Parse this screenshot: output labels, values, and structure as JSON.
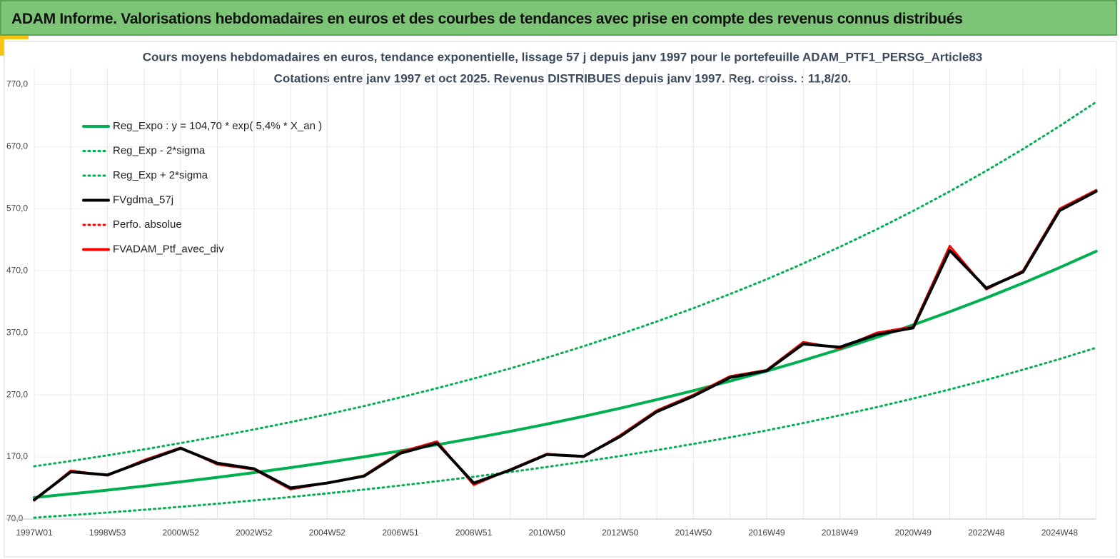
{
  "header": {
    "title": "ADAM Informe. Valorisations hebdomadaires en euros et des courbes de tendances avec prise en compte des revenus connus distribués"
  },
  "chart_data": {
    "type": "line",
    "title": "Cours moyens hebdomadaires  en euros, tendance exponentielle, lissage 57 j depuis janv 1997 pour le portefeuille ADAM_PTF1_PERSG_Article83",
    "subtitle": "Cotations  entre janv 1997 et oct 2025. Revenus DISTRIBUES depuis janv 1997. Reg. croiss. : 11,8/20.",
    "categories": [
      "1997W01",
      null,
      "1998W53",
      null,
      "2000W52",
      null,
      "2002W52",
      null,
      "2004W52",
      null,
      "2006W51",
      null,
      "2008W51",
      null,
      "2010W50",
      null,
      "2012W50",
      null,
      "2014W50",
      null,
      "2016W49",
      null,
      "2018W49",
      null,
      "2020W49",
      null,
      "2022W48",
      null,
      "2024W48",
      null
    ],
    "ylim": [
      70,
      797
    ],
    "yticks": [
      {
        "value": 70,
        "label": "70,0"
      },
      {
        "value": 170,
        "label": "170,0"
      },
      {
        "value": 270,
        "label": "270,0"
      },
      {
        "value": 370,
        "label": "370,0"
      },
      {
        "value": 470,
        "label": "470,0"
      },
      {
        "value": 570,
        "label": "570,0"
      },
      {
        "value": 670,
        "label": "670,0"
      },
      {
        "value": 770,
        "label": "770,0"
      }
    ],
    "grid": true,
    "legend": "upper-left",
    "series": [
      {
        "name": "Reg_Expo : y = 104,70 * exp( 5,4% *  X_an )",
        "color": "#00b050",
        "style": "solid",
        "values": [
          104.7,
          110.5,
          116.6,
          123.1,
          130.0,
          137.2,
          144.8,
          152.8,
          161.3,
          170.2,
          179.7,
          189.7,
          200.2,
          211.3,
          223.0,
          235.4,
          248.5,
          262.3,
          276.8,
          292.2,
          308.3,
          325.5,
          343.6,
          362.6,
          382.7,
          404.0,
          426.4,
          450.1,
          475.1,
          501.4
        ]
      },
      {
        "name": "Reg_Exp - 2*sigma",
        "color": "#00b050",
        "style": "dotted",
        "values": [
          72.2,
          76.2,
          80.5,
          84.9,
          89.7,
          94.7,
          99.9,
          105.4,
          111.3,
          117.4,
          124.0,
          130.9,
          138.1,
          145.8,
          153.9,
          162.4,
          171.5,
          181.0,
          191.0,
          201.6,
          212.7,
          224.6,
          237.1,
          250.2,
          264.1,
          278.8,
          294.2,
          310.6,
          327.8,
          346.0
        ]
      },
      {
        "name": "Reg_Exp + 2*sigma",
        "color": "#00b050",
        "style": "dotted",
        "values": [
          155.0,
          163.5,
          172.6,
          182.2,
          192.4,
          203.1,
          214.3,
          226.1,
          238.7,
          251.9,
          266.0,
          280.8,
          296.3,
          312.7,
          330.0,
          348.4,
          367.8,
          388.2,
          409.7,
          432.5,
          456.3,
          481.7,
          508.5,
          536.6,
          566.4,
          597.9,
          631.1,
          666.1,
          703.1,
          742.1
        ]
      },
      {
        "name": "FVgdma_57j",
        "color": "#000000",
        "style": "solid",
        "values": [
          101,
          146,
          141,
          163,
          184,
          160,
          151,
          120,
          128,
          139,
          176,
          192,
          128,
          149,
          174,
          171,
          203,
          243,
          268,
          298,
          309,
          352,
          347,
          367,
          378,
          503,
          442,
          468,
          567,
          598
        ]
      },
      {
        "name": "Perfo. absolue",
        "color": "#ff0000",
        "style": "dotted",
        "values": [
          100,
          148,
          140,
          165,
          185,
          158,
          150,
          118,
          128,
          140,
          178,
          195,
          125,
          150,
          175,
          170,
          205,
          245,
          270,
          300,
          310,
          355,
          345,
          370,
          380,
          510,
          440,
          470,
          570,
          600
        ]
      },
      {
        "name": "FVADAM_Ptf_avec_div",
        "color": "#ff0000",
        "style": "solid",
        "values": [
          100,
          148,
          140,
          165,
          185,
          158,
          150,
          118,
          128,
          140,
          178,
          195,
          125,
          150,
          175,
          170,
          205,
          245,
          270,
          300,
          310,
          355,
          345,
          370,
          380,
          510,
          440,
          470,
          570,
          600
        ]
      }
    ]
  }
}
